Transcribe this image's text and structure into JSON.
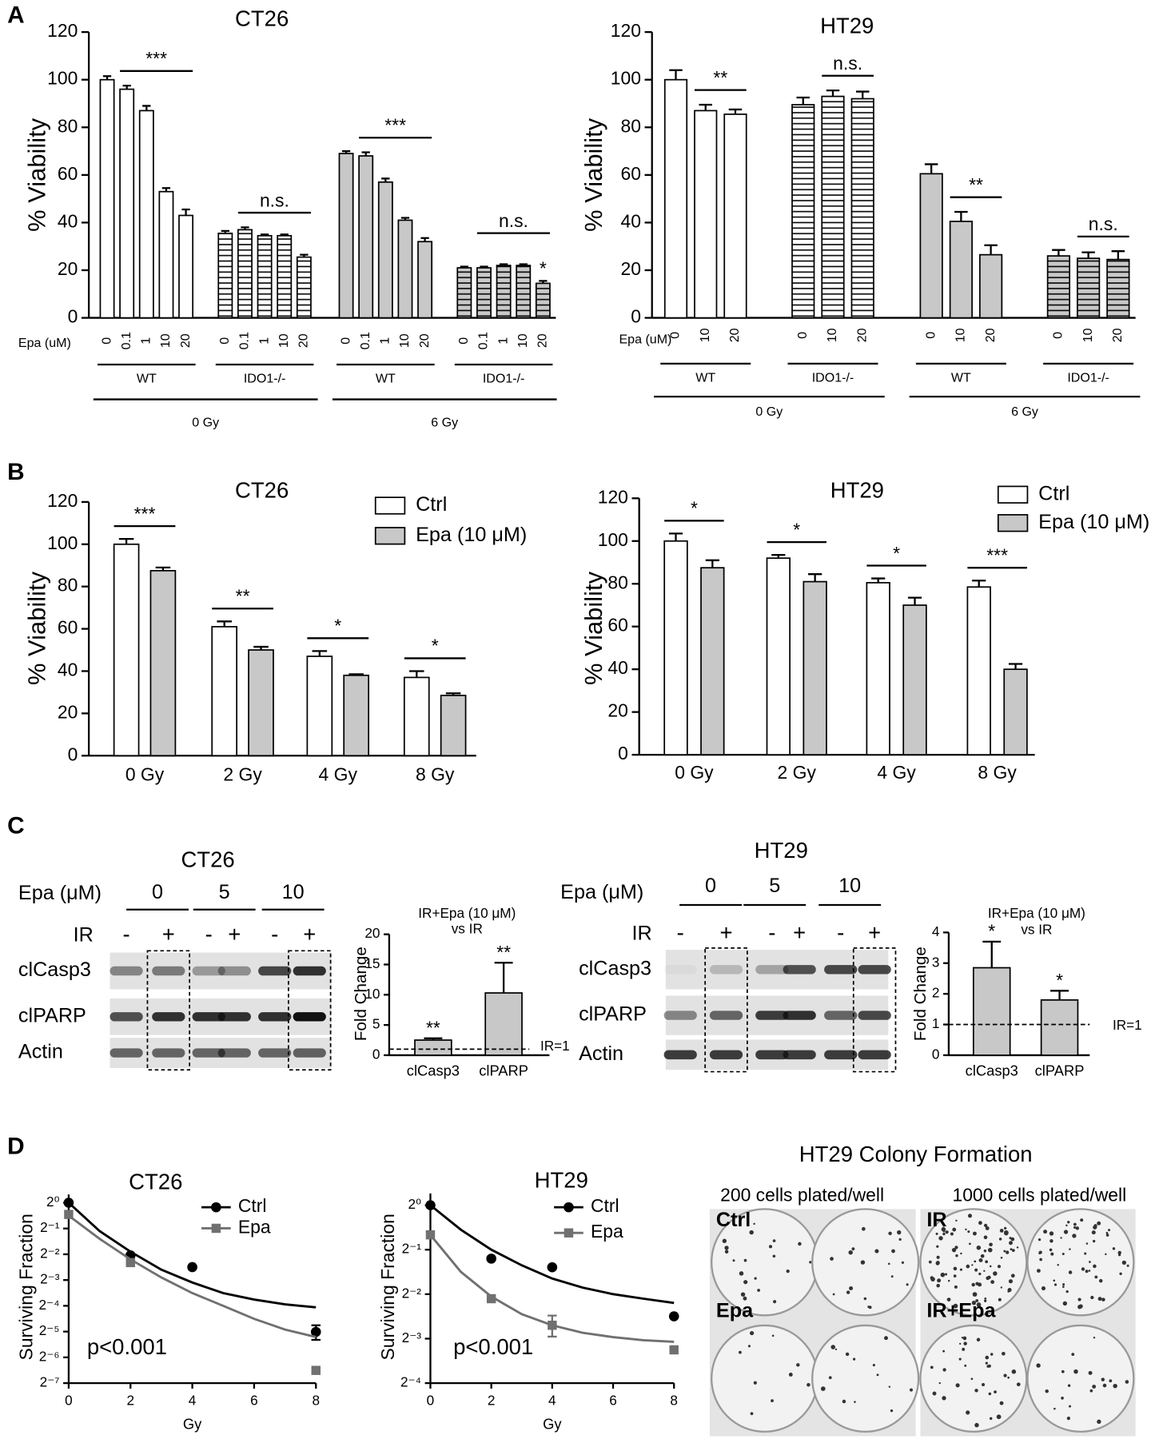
{
  "panels": [
    "A",
    "B",
    "C",
    "D"
  ],
  "chart_data": [
    {
      "type": "bar",
      "title": "CT26",
      "ylabel": "% Viability",
      "x_label": "Epa (uM)",
      "ylim": [
        0,
        120
      ],
      "yticks": [
        0,
        20,
        40,
        60,
        80,
        100,
        120
      ],
      "groups": [
        {
          "name": "WT",
          "color": "#ffffff",
          "hatch": false,
          "categories": [
            "0",
            "0.1",
            "1",
            "10",
            "20"
          ],
          "values": [
            100,
            96,
            87,
            53,
            43
          ],
          "errors": [
            1.5,
            1.5,
            2,
            1.5,
            2.5
          ]
        },
        {
          "name": "IDO1-/-",
          "color": "#ffffff",
          "hatch": true,
          "categories": [
            "0",
            "0.1",
            "1",
            "10",
            "20"
          ],
          "values": [
            35.5,
            37,
            34.5,
            34.5,
            25.5
          ],
          "errors": [
            1,
            1,
            0.5,
            0.5,
            1
          ]
        },
        {
          "name": "WT",
          "color": "#c8c8c8",
          "hatch": false,
          "categories": [
            "0",
            "0.1",
            "1",
            "10",
            "20"
          ],
          "values": [
            69,
            68,
            57,
            41,
            32
          ],
          "errors": [
            1,
            1.5,
            1.5,
            1,
            1.5
          ]
        },
        {
          "name": "IDO1-/-",
          "color": "#c8c8c8",
          "hatch": true,
          "categories": [
            "0",
            "0.1",
            "1",
            "10",
            "20"
          ],
          "values": [
            21,
            21,
            22,
            22,
            14.5
          ],
          "errors": [
            0.5,
            0.5,
            0.5,
            0.5,
            1
          ]
        }
      ],
      "doses": [
        "0 Gy",
        "6 Gy"
      ],
      "annotations": [
        {
          "text": "***",
          "group": 0
        },
        {
          "text": "n.s.",
          "group": 1
        },
        {
          "text": "***",
          "group": 2
        },
        {
          "text": "n.s.",
          "group": 3
        },
        {
          "text": "*",
          "group": 3,
          "bracket": false
        }
      ]
    },
    {
      "type": "bar",
      "title": "HT29",
      "ylabel": "% Viability",
      "x_label": "Epa (uM)",
      "ylim": [
        0,
        120
      ],
      "yticks": [
        0,
        20,
        40,
        60,
        80,
        100,
        120
      ],
      "groups": [
        {
          "name": "WT",
          "color": "#ffffff",
          "hatch": false,
          "categories": [
            "0",
            "10",
            "20"
          ],
          "values": [
            100,
            87,
            85.5
          ],
          "errors": [
            4,
            2.5,
            2
          ]
        },
        {
          "name": "IDO1-/-",
          "color": "#ffffff",
          "hatch": true,
          "categories": [
            "0",
            "10",
            "20"
          ],
          "values": [
            89.5,
            93,
            92
          ],
          "errors": [
            3,
            2.5,
            3
          ]
        },
        {
          "name": "WT",
          "color": "#c8c8c8",
          "hatch": false,
          "categories": [
            "0",
            "10",
            "20"
          ],
          "values": [
            60.5,
            40.5,
            26.5
          ],
          "errors": [
            4,
            4,
            4
          ]
        },
        {
          "name": "IDO1-/-",
          "color": "#c8c8c8",
          "hatch": true,
          "categories": [
            "0",
            "10",
            "20"
          ],
          "values": [
            26,
            25,
            24.5
          ],
          "errors": [
            2.5,
            2.5,
            3.5
          ]
        }
      ],
      "doses": [
        "0 Gy",
        "6 Gy"
      ],
      "annotations": [
        {
          "text": "**",
          "group": 0
        },
        {
          "text": "n.s.",
          "group": 1
        },
        {
          "text": "**",
          "group": 2
        },
        {
          "text": "n.s.",
          "group": 3
        }
      ]
    },
    {
      "type": "bar",
      "title": "CT26",
      "ylabel": "% Viability",
      "ylim": [
        0,
        120
      ],
      "yticks": [
        0,
        20,
        40,
        60,
        80,
        100,
        120
      ],
      "categories": [
        "0 Gy",
        "2 Gy",
        "4 Gy",
        "8 Gy"
      ],
      "series": [
        {
          "name": "Ctrl",
          "color": "#ffffff",
          "values": [
            100,
            61,
            47,
            37
          ],
          "errors": [
            2.5,
            2.5,
            2.5,
            3
          ]
        },
        {
          "name": "Epa (10 μM)",
          "color": "#c8c8c8",
          "values": [
            87.5,
            50,
            38,
            28.5
          ],
          "errors": [
            1.5,
            1.5,
            0.5,
            1
          ]
        }
      ],
      "annotations": [
        "***",
        "**",
        "*",
        "*"
      ]
    },
    {
      "type": "bar",
      "title": "HT29",
      "ylabel": "% Viability",
      "ylim": [
        0,
        120
      ],
      "yticks": [
        0,
        20,
        40,
        60,
        80,
        100,
        120
      ],
      "categories": [
        "0 Gy",
        "2 Gy",
        "4 Gy",
        "8 Gy"
      ],
      "series": [
        {
          "name": "Ctrl",
          "color": "#ffffff",
          "values": [
            100,
            92,
            80.5,
            78.5
          ],
          "errors": [
            3.5,
            1.5,
            2,
            3
          ]
        },
        {
          "name": "Epa (10 μM)",
          "color": "#c8c8c8",
          "values": [
            87.5,
            81,
            70,
            40
          ],
          "errors": [
            3.5,
            3.5,
            3.5,
            2.5
          ]
        }
      ],
      "annotations": [
        "*",
        "*",
        "*",
        "***"
      ]
    },
    {
      "type": "bar",
      "title": "IR+Epa (10 μM)",
      "subtitle": "vs IR",
      "ylabel": "Fold Change",
      "ylim": [
        0,
        20
      ],
      "yticks": [
        0,
        5,
        10,
        15,
        20
      ],
      "categories": [
        "clCasp3",
        "clPARP"
      ],
      "values": [
        2.5,
        10.3
      ],
      "errors": [
        0.3,
        5
      ],
      "color": "#c8c8c8",
      "reference": {
        "value": 1,
        "label": "IR=1"
      },
      "annotations": [
        "**",
        "**"
      ]
    },
    {
      "type": "bar",
      "title": "IR+Epa (10 μM)",
      "subtitle": "vs IR",
      "ylabel": "Fold Change",
      "ylim": [
        0,
        4
      ],
      "yticks": [
        0,
        1,
        2,
        3,
        4
      ],
      "categories": [
        "clCasp3",
        "clPARP"
      ],
      "values": [
        2.85,
        1.8
      ],
      "errors": [
        0.85,
        0.3
      ],
      "color": "#c8c8c8",
      "reference": {
        "value": 1,
        "label": "IR=1"
      },
      "annotations": [
        "*",
        "*"
      ]
    },
    {
      "type": "scatter",
      "title": "CT26",
      "xlabel": "Gy",
      "ylabel": "Surviving Fraction",
      "log_y": true,
      "xlim": [
        0,
        8
      ],
      "xticks": [
        0,
        2,
        4,
        6,
        8
      ],
      "ylim": [
        0.0078125,
        1.25
      ],
      "yticks": [
        {
          "value": 1,
          "label": "2⁰"
        },
        {
          "value": 0.5,
          "label": "2⁻¹"
        },
        {
          "value": 0.25,
          "label": "2⁻²"
        },
        {
          "value": 0.125,
          "label": "2⁻³"
        },
        {
          "value": 0.0625,
          "label": "2⁻⁴"
        },
        {
          "value": 0.03125,
          "label": "2⁻⁵"
        },
        {
          "value": 0.015625,
          "label": "2⁻⁶"
        },
        {
          "value": 0.0078125,
          "label": "2⁻⁷"
        }
      ],
      "x": [
        0,
        2,
        4,
        8
      ],
      "fit_x": [
        0,
        1,
        2,
        3,
        4,
        5,
        6,
        7,
        8
      ],
      "series": [
        {
          "name": "Ctrl",
          "color": "#000000",
          "marker": "circle",
          "values": [
            1,
            0.243,
            0.177,
            0.031
          ],
          "errors": [
            null,
            null,
            null,
            0.006
          ],
          "fit": [
            1,
            0.467,
            0.268,
            0.165,
            0.117,
            0.088,
            0.074,
            0.065,
            0.06
          ]
        },
        {
          "name": "Epa",
          "color": "#707070",
          "marker": "square",
          "values": [
            0.73,
            0.2,
            null,
            0.011
          ],
          "errors": [
            null,
            null,
            null,
            null
          ],
          "fit": [
            0.707,
            0.379,
            0.218,
            0.134,
            0.088,
            0.0625,
            0.044,
            0.033,
            0.027
          ]
        }
      ],
      "annotation": "p<0.001"
    },
    {
      "type": "scatter",
      "title": "HT29",
      "xlabel": "Gy",
      "ylabel": "Surviving Fraction",
      "log_y": true,
      "xlim": [
        0,
        8
      ],
      "xticks": [
        0,
        2,
        4,
        6,
        8
      ],
      "ylim": [
        0.0625,
        1.2
      ],
      "yticks": [
        {
          "value": 1,
          "label": "2⁰"
        },
        {
          "value": 0.5,
          "label": "2⁻¹"
        },
        {
          "value": 0.25,
          "label": "2⁻²"
        },
        {
          "value": 0.125,
          "label": "2⁻³"
        },
        {
          "value": 0.0625,
          "label": "2⁻⁴"
        }
      ],
      "x": [
        0,
        2,
        4,
        8
      ],
      "fit_x": [
        0,
        1,
        2,
        3,
        4,
        5,
        6,
        7,
        8
      ],
      "series": [
        {
          "name": "Ctrl",
          "color": "#000000",
          "marker": "circle",
          "values": [
            1,
            0.435,
            0.38,
            0.177
          ],
          "errors": [
            null,
            null,
            null,
            null
          ],
          "fit": [
            1,
            0.683,
            0.5,
            0.392,
            0.319,
            0.277,
            0.25,
            0.233,
            0.218
          ]
        },
        {
          "name": "Epa",
          "color": "#707070",
          "marker": "square",
          "values": [
            0.63,
            0.233,
            0.154,
            0.105
          ],
          "errors": [
            null,
            null,
            0.025,
            null
          ],
          "fit": [
            0.63,
            0.354,
            0.241,
            0.183,
            0.154,
            0.137,
            0.128,
            0.122,
            0.119
          ]
        }
      ],
      "annotation": "p<0.001"
    }
  ],
  "blots": [
    {
      "title": "CT26",
      "dose_label": "Epa (μM)",
      "doses": [
        "0",
        "5",
        "10"
      ],
      "ir_label": "IR",
      "ir": [
        "-",
        "+",
        "-",
        "+",
        "-",
        "+"
      ],
      "rows": [
        "clCasp3",
        "clPARP",
        "Actin"
      ]
    },
    {
      "title": "HT29",
      "dose_label": "Epa (μM)",
      "doses": [
        "0",
        "5",
        "10"
      ],
      "ir_label": "IR",
      "ir": [
        "-",
        "+",
        "-",
        "+",
        "-",
        "+"
      ],
      "rows": [
        "clCasp3",
        "clPARP",
        "Actin"
      ]
    }
  ],
  "colony": {
    "title": "HT29 Colony Formation",
    "columns": [
      "200 cells plated/well",
      "1000 cells plated/well"
    ],
    "wells": [
      "Ctrl",
      "IR",
      "Epa",
      "IR+Epa"
    ]
  }
}
